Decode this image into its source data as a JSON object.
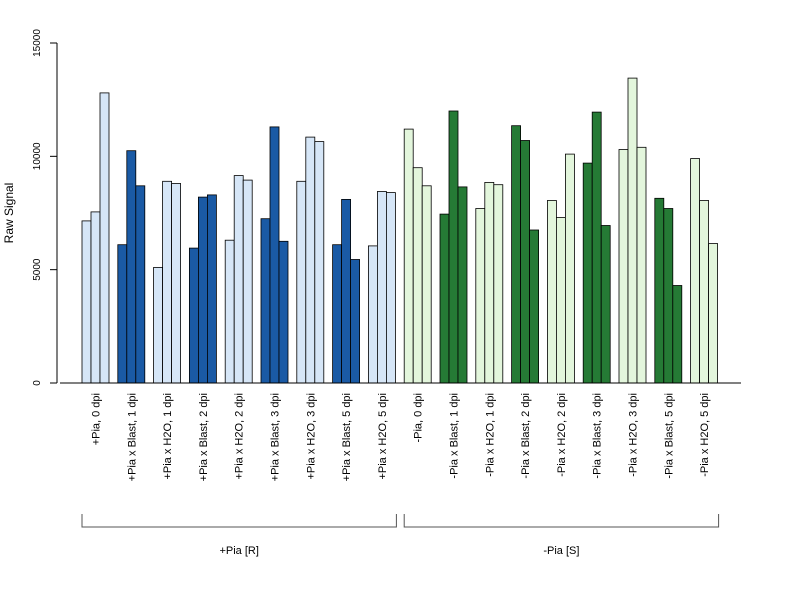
{
  "chart_data": {
    "type": "bar",
    "ylabel": "Raw Signal",
    "ylim": [
      0,
      15000
    ],
    "yticks": [
      0,
      5000,
      10000,
      15000
    ],
    "grid": false,
    "categories": [
      "+Pia, 0 dpi",
      "+Pia x Blast, 1 dpi",
      "+Pia x H2O, 1 dpi",
      "+Pia x Blast, 2 dpi",
      "+Pia x H2O, 2 dpi",
      "+Pia x Blast, 3 dpi",
      "+Pia x H2O, 3 dpi",
      "+Pia x Blast, 5 dpi",
      "+Pia x H2O, 5 dpi",
      "-Pia, 0 dpi",
      "-Pia x Blast, 1 dpi",
      "-Pia x H2O, 1 dpi",
      "-Pia x Blast, 2 dpi",
      "-Pia x H2O, 2 dpi",
      "-Pia x Blast, 3 dpi",
      "-Pia x H2O, 3 dpi",
      "-Pia x Blast, 5 dpi",
      "-Pia x H2O, 5 dpi"
    ],
    "values": [
      [
        7150,
        7550,
        12800
      ],
      [
        6100,
        10250,
        8700
      ],
      [
        5100,
        8900,
        8800
      ],
      [
        5950,
        8200,
        8300
      ],
      [
        6300,
        9150,
        8950
      ],
      [
        7250,
        11300,
        6250
      ],
      [
        8900,
        10850,
        10650
      ],
      [
        6100,
        8100,
        5450
      ],
      [
        6050,
        8450,
        8400
      ],
      [
        11200,
        9500,
        8700
      ],
      [
        7450,
        12000,
        8650
      ],
      [
        7700,
        8850,
        8750
      ],
      [
        11350,
        10700,
        6750
      ],
      [
        8050,
        7300,
        10100
      ],
      [
        9700,
        11950,
        6950
      ],
      [
        10300,
        13450,
        10400
      ],
      [
        8150,
        7700,
        4300
      ],
      [
        9900,
        8050,
        6150
      ]
    ],
    "bar_colors": [
      "#d6e6f7",
      "#1a5aa5",
      "#d6e6f7",
      "#1a5aa5",
      "#d6e6f7",
      "#1a5aa5",
      "#d6e6f7",
      "#1a5aa5",
      "#d6e6f7",
      "#e3f6dc",
      "#257a35",
      "#e3f6dc",
      "#257a35",
      "#e3f6dc",
      "#257a35",
      "#e3f6dc",
      "#257a35",
      "#e3f6dc"
    ],
    "groups": [
      {
        "label": "+Pia [R]",
        "from": 0,
        "to": 8
      },
      {
        "label": "-Pia [S]",
        "from": 9,
        "to": 17
      }
    ]
  }
}
